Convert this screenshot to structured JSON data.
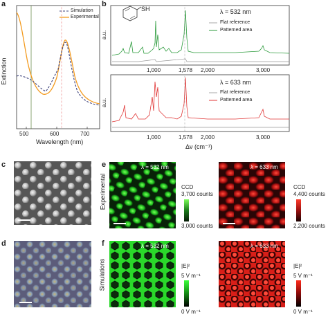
{
  "panels": {
    "a": {
      "label": "a",
      "ylabel": "Extinction",
      "xlabel": "Wavelength (nm)",
      "xticks": [
        "500",
        "600",
        "700"
      ],
      "legend": [
        "Simulation",
        "Experimental"
      ],
      "colors": {
        "simulation": "#3a3f7a",
        "experimental": "#f39a1e",
        "marker532": "#5a7f3a",
        "marker633": "#e03a3a"
      }
    },
    "b": {
      "label": "b",
      "molecule": "SH",
      "top": {
        "lambda": "λ = 532 nm",
        "ylabel": "a.u.",
        "legend": [
          "Flat reference",
          "Patterned area"
        ],
        "color": "#2a9a3a"
      },
      "bottom": {
        "lambda": "λ = 633 nm",
        "ylabel": "a.u.",
        "legend": [
          "Flat reference",
          "Patterned area"
        ],
        "color": "#e03535"
      },
      "xticks": [
        "1,000",
        "1,578",
        "2,000",
        "3,000"
      ],
      "xlabel": "Δν (cm⁻¹)"
    },
    "c": {
      "label": "c"
    },
    "d": {
      "label": "d"
    },
    "e": {
      "label": "e",
      "rowlabel": "Experimental",
      "left": {
        "lambda": "λ = 532 nm",
        "cbar_title": "CCD",
        "cbar_max": "3,700 counts",
        "cbar_min": "3,000 counts"
      },
      "right": {
        "lambda": "λ = 633 nm",
        "cbar_title": "CCD",
        "cbar_max": "4,400 counts",
        "cbar_min": "2,200 counts"
      }
    },
    "f": {
      "label": "f",
      "rowlabel": "Simulations",
      "left": {
        "lambda": "λ = 532 nm",
        "cbar_title": "|E|²",
        "cbar_max": "5 V m⁻¹",
        "cbar_min": "0 V m⁻¹"
      },
      "right": {
        "lambda": "λ = 633 nm",
        "cbar_title": "|E|²",
        "cbar_max": "5 V m⁻¹",
        "cbar_min": "0 V m⁻¹"
      }
    }
  }
}
